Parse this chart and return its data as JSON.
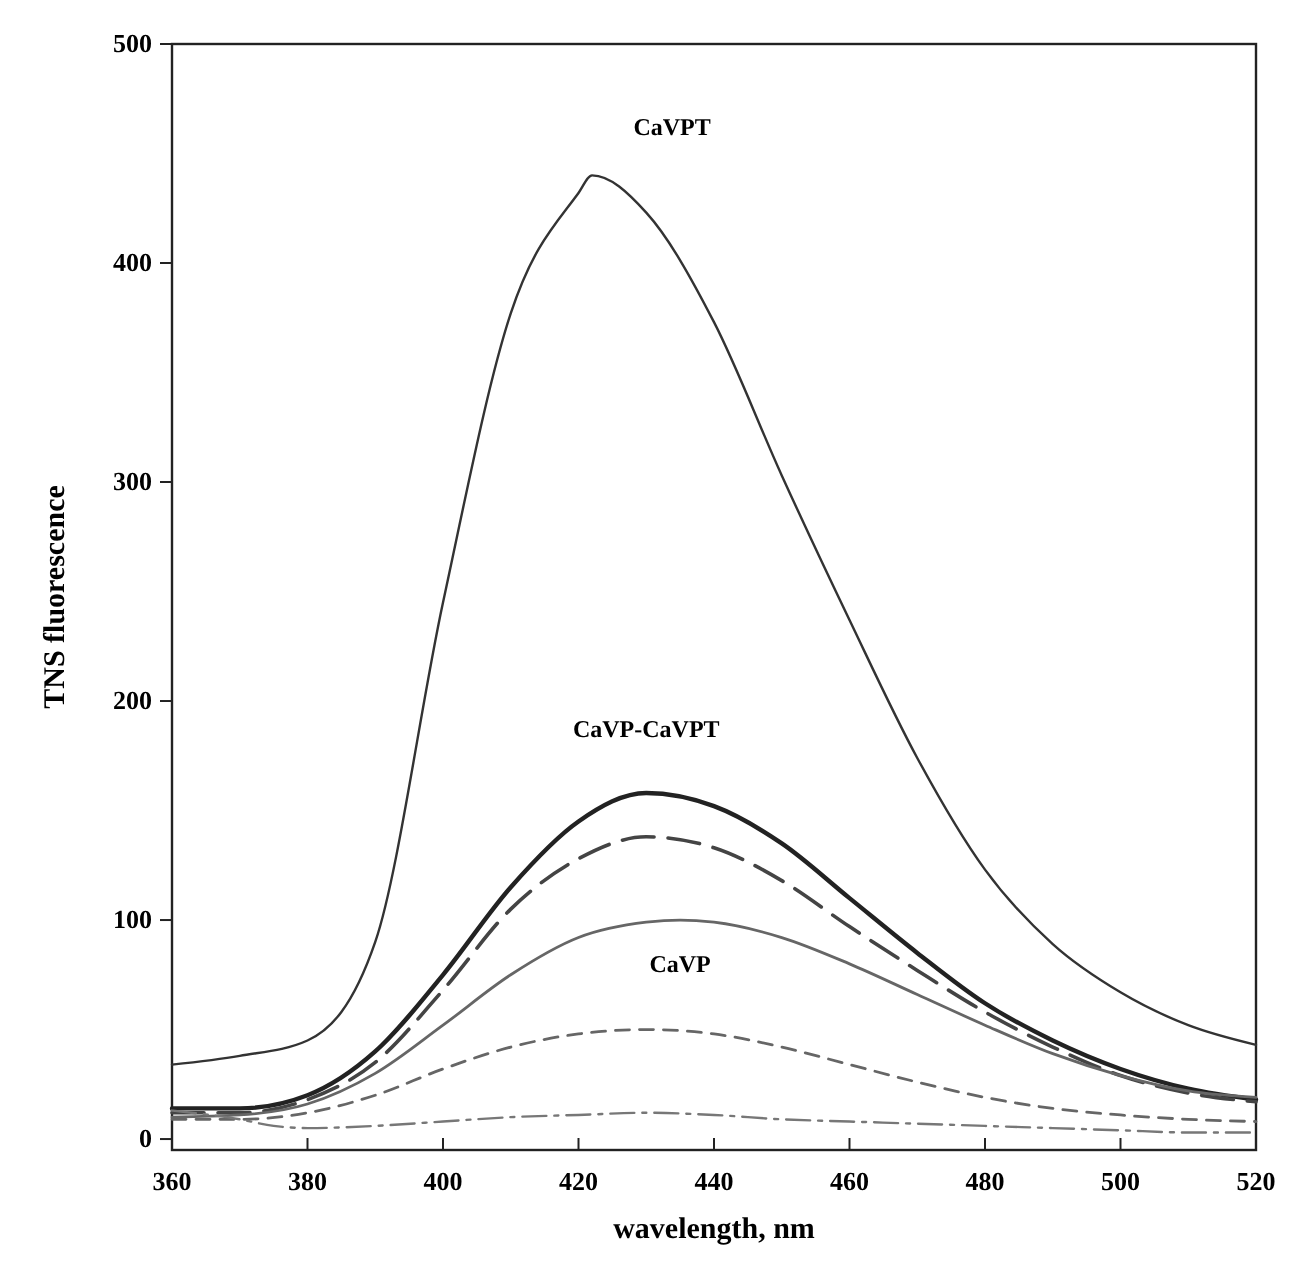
{
  "chart_data": {
    "type": "line",
    "xlabel": "wavelength, nm",
    "ylabel": "TNS fluorescence",
    "x": [
      360,
      370,
      380,
      390,
      400,
      410,
      420,
      430,
      440,
      450,
      460,
      470,
      480,
      490,
      500,
      510,
      520
    ],
    "xlim": [
      360,
      520
    ],
    "xticks": [
      360,
      380,
      400,
      420,
      440,
      460,
      480,
      500,
      520
    ],
    "ylim": [
      -5,
      500
    ],
    "yticks": [
      0,
      100,
      200,
      300,
      400,
      500
    ],
    "grid": false,
    "legend": false,
    "marker": "none",
    "series": [
      {
        "name": "CaVPT",
        "color": "#333333",
        "line_style": "solid",
        "x": [
          360,
          370,
          380,
          390,
          400,
          410,
          420,
          422,
          430,
          440,
          450,
          460,
          470,
          480,
          490,
          500,
          510,
          520
        ],
        "values": [
          34,
          38,
          45,
          90,
          245,
          377,
          432,
          440,
          423,
          373,
          303,
          237,
          174,
          123,
          89,
          67,
          52,
          43
        ]
      },
      {
        "name": "CaVP-CaVPT",
        "color": "#222222",
        "line_style": "solid",
        "values": [
          14,
          14,
          20,
          40,
          75,
          115,
          145,
          158,
          152,
          135,
          110,
          85,
          62,
          45,
          32,
          23,
          18
        ]
      },
      {
        "color": "#444444",
        "line_style": "dashed",
        "values": [
          12,
          12,
          18,
          35,
          68,
          105,
          128,
          138,
          133,
          118,
          97,
          77,
          58,
          42,
          29,
          21,
          17
        ]
      },
      {
        "name": "CaVP",
        "color": "#666666",
        "line_style": "solid",
        "x": [
          360,
          370,
          380,
          390,
          400,
          410,
          420,
          430,
          435,
          440,
          450,
          460,
          470,
          480,
          490,
          500,
          510,
          520
        ],
        "values": [
          10,
          11,
          16,
          30,
          52,
          75,
          92,
          99,
          100,
          99,
          92,
          80,
          66,
          52,
          39,
          29,
          22,
          19
        ]
      },
      {
        "color": "#666666",
        "line_style": "dashed",
        "values": [
          9,
          9,
          12,
          20,
          32,
          42,
          48,
          50,
          48,
          42,
          34,
          26,
          19,
          14,
          11,
          9,
          8
        ]
      },
      {
        "color": "#777777",
        "line_style": "dotted",
        "x": [
          360,
          370,
          375,
          380,
          390,
          400,
          410,
          420,
          430,
          440,
          450,
          460,
          470,
          480,
          490,
          500,
          510,
          520
        ],
        "values": [
          13,
          9,
          6,
          5,
          6,
          8,
          10,
          11,
          12,
          11,
          9,
          8,
          7,
          6,
          5,
          4,
          3,
          3
        ]
      }
    ]
  }
}
